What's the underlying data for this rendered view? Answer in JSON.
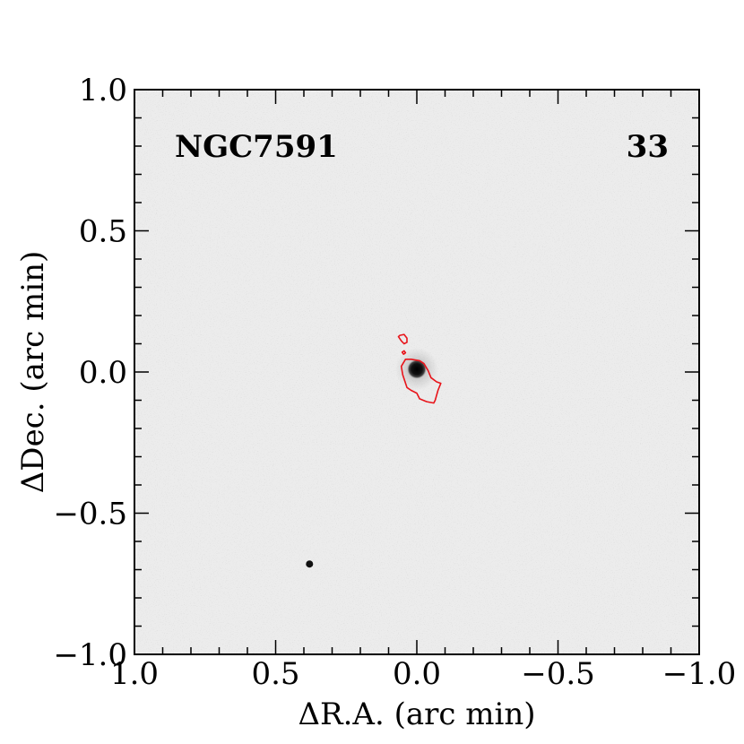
{
  "chart_data": {
    "type": "image",
    "object_name": "NGC7591",
    "panel_number": "33",
    "xlabel": "ΔR.A. (arc min)",
    "ylabel": "ΔDec. (arc min)",
    "xlim": [
      1.0,
      -1.0
    ],
    "ylim": [
      -1.0,
      1.0
    ],
    "x_ticks": [
      1.0,
      0.5,
      0.0,
      -0.5,
      -1.0
    ],
    "y_ticks": [
      -1.0,
      -0.5,
      0.0,
      0.5,
      1.0
    ],
    "x_tick_labels": [
      "1.0",
      "0.5",
      "0.0",
      "−0.5",
      "−1.0"
    ],
    "y_tick_labels": [
      "−1.0",
      "−0.5",
      "0.0",
      "0.5",
      "1.0"
    ],
    "minor_tick_step": 0.1,
    "background": "grayscale optical image with noise",
    "sources": [
      {
        "name": "central-nucleus",
        "x": 0.0,
        "y": 0.01
      },
      {
        "name": "star",
        "x": 0.38,
        "y": -0.68
      }
    ],
    "contours": [
      {
        "color": "#e8141a",
        "points": [
          [
            0.02,
            0.045
          ],
          [
            -0.01,
            0.04
          ],
          [
            -0.025,
            0.03
          ],
          [
            -0.04,
            0.005
          ],
          [
            -0.05,
            -0.02
          ],
          [
            -0.07,
            -0.035
          ],
          [
            -0.085,
            -0.04
          ],
          [
            -0.075,
            -0.065
          ],
          [
            -0.065,
            -0.1
          ],
          [
            -0.06,
            -0.11
          ],
          [
            -0.035,
            -0.105
          ],
          [
            -0.01,
            -0.095
          ],
          [
            0.0,
            -0.075
          ],
          [
            0.02,
            -0.065
          ],
          [
            0.035,
            -0.055
          ],
          [
            0.05,
            -0.01
          ],
          [
            0.055,
            0.02
          ],
          [
            0.04,
            0.045
          ],
          [
            0.02,
            0.045
          ]
        ]
      },
      {
        "color": "#e8141a",
        "points": [
          [
            0.06,
            0.13
          ],
          [
            0.045,
            0.133
          ],
          [
            0.035,
            0.12
          ],
          [
            0.035,
            0.105
          ],
          [
            0.045,
            0.1
          ],
          [
            0.055,
            0.11
          ],
          [
            0.065,
            0.125
          ],
          [
            0.06,
            0.13
          ]
        ]
      },
      {
        "color": "#e8141a",
        "points": [
          [
            0.045,
            0.075
          ],
          [
            0.04,
            0.068
          ],
          [
            0.047,
            0.063
          ],
          [
            0.052,
            0.07
          ],
          [
            0.045,
            0.075
          ]
        ]
      }
    ],
    "colors": {
      "frame": "#000000",
      "contour": "#e8141a",
      "image_background": "#ebebeb"
    }
  }
}
